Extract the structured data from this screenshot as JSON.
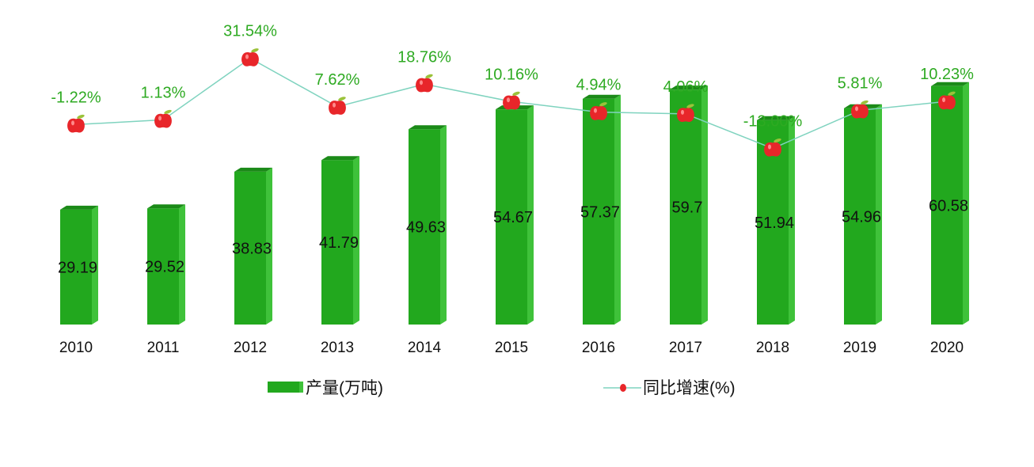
{
  "chart_data": {
    "type": "bar+line",
    "categories": [
      "2010",
      "2011",
      "2012",
      "2013",
      "2014",
      "2015",
      "2016",
      "2017",
      "2018",
      "2019",
      "2020"
    ],
    "series": [
      {
        "name": "产量(万吨)",
        "type": "bar",
        "axis": "left",
        "values": [
          29.19,
          29.52,
          38.83,
          41.79,
          49.63,
          54.67,
          57.37,
          59.7,
          51.94,
          54.96,
          60.58
        ],
        "labels": [
          "29.19",
          "29.52",
          "38.83",
          "41.79",
          "49.63",
          "54.67",
          "57.37",
          "59.7",
          "51.94",
          "54.96",
          "60.58"
        ]
      },
      {
        "name": "同比增速(%)",
        "type": "line",
        "axis": "right",
        "values": [
          -1.22,
          1.13,
          31.54,
          7.62,
          18.76,
          10.16,
          4.94,
          4.06,
          -13.0,
          5.81,
          10.23
        ],
        "labels": [
          "-1.22%",
          "1.13%",
          "31.54%",
          "7.62%",
          "18.76%",
          "10.16%",
          "4.94%",
          "4.06%",
          "-13.00%",
          "5.81%",
          "10.23%"
        ]
      }
    ],
    "ylim": [
      0,
      72
    ],
    "ylim_right": [
      -100,
      40
    ],
    "grid": false,
    "legend": "bottom",
    "colors": {
      "bar": "#22a81e",
      "bar_side": "#3fc23a",
      "bar_top": "#1b8a18",
      "line": "#7fd3bf",
      "marker": "#e8262a",
      "growth_label": "#2eaa22"
    },
    "marker_icon": "apple-icon"
  }
}
